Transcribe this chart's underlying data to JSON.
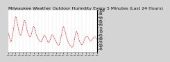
{
  "title": "Milwaukee Weather Outdoor Humidity Every 5 Minutes (Last 24 Hours)",
  "bg_color": "#d4d4d4",
  "plot_bg_color": "#ffffff",
  "line_color": "#cc0000",
  "grid_color": "#888888",
  "ylim": [
    40,
    100
  ],
  "y_ticks": [
    45,
    50,
    55,
    60,
    65,
    70,
    75,
    80,
    85,
    90,
    95,
    100
  ],
  "humidity_values": [
    68,
    65,
    62,
    59,
    57,
    55,
    57,
    60,
    64,
    68,
    73,
    78,
    83,
    88,
    91,
    90,
    87,
    83,
    79,
    75,
    71,
    68,
    66,
    65,
    64,
    66,
    69,
    73,
    77,
    81,
    84,
    86,
    85,
    83,
    80,
    76,
    72,
    69,
    67,
    65,
    64,
    63,
    62,
    63,
    65,
    68,
    71,
    74,
    76,
    77,
    76,
    74,
    71,
    68,
    65,
    63,
    61,
    60,
    59,
    58,
    57,
    56,
    55,
    55,
    56,
    57,
    59,
    61,
    63,
    64,
    64,
    63,
    62,
    60,
    59,
    57,
    55,
    54,
    54,
    55,
    57,
    59,
    62,
    64,
    65,
    65,
    64,
    63,
    61,
    60,
    58,
    57,
    55,
    54,
    52,
    51,
    50,
    50,
    51,
    53,
    56,
    60,
    64,
    68,
    72,
    75,
    77,
    76,
    74,
    71,
    68,
    64,
    61,
    59,
    57,
    55,
    53,
    52,
    51,
    50,
    49,
    48,
    47,
    47,
    48,
    50,
    53,
    57,
    61,
    65,
    68,
    70,
    69,
    67,
    64,
    61,
    58,
    56,
    54,
    53,
    52,
    51,
    51,
    52,
    53,
    55,
    57,
    59,
    61,
    62,
    62,
    63,
    63,
    62,
    61,
    59,
    58,
    57,
    56,
    56,
    57,
    58,
    59,
    60,
    61,
    61,
    62,
    62,
    61,
    60,
    59,
    58
  ],
  "n_xticks": 25,
  "title_fontsize": 4.5,
  "tick_fontsize": 3.5
}
